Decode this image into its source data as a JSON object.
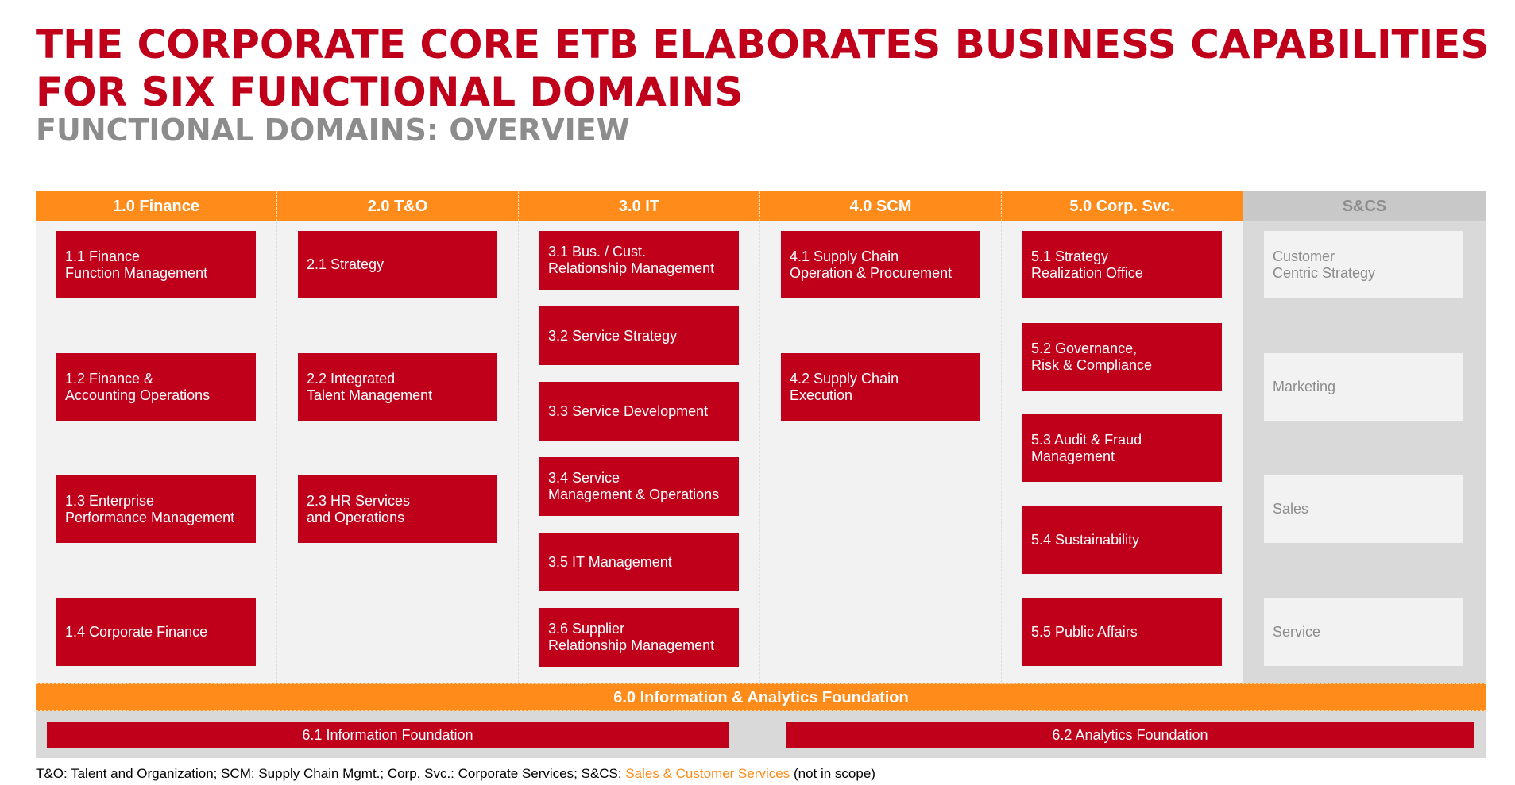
{
  "title": "THE CORPORATE CORE ETB ELABORATES BUSINESS CAPABILITIES FOR SIX FUNCTIONAL DOMAINS",
  "subtitle": "FUNCTIONAL DOMAINS: OVERVIEW",
  "columns": [
    {
      "header": "1.0 Finance",
      "boxes": [
        "1.1 Finance\nFunction Management",
        "1.2 Finance &\nAccounting Operations",
        "1.3 Enterprise\nPerformance Management",
        "1.4 Corporate Finance"
      ]
    },
    {
      "header": "2.0 T&O",
      "boxes": [
        "2.1 Strategy",
        "2.2 Integrated\nTalent Management",
        "2.3 HR Services\nand Operations"
      ]
    },
    {
      "header": "3.0 IT",
      "boxes": [
        "3.1 Bus. / Cust.\nRelationship Management",
        "3.2 Service Strategy",
        "3.3 Service Development",
        "3.4 Service\nManagement & Operations",
        "3.5 IT Management",
        "3.6 Supplier\nRelationship Management"
      ]
    },
    {
      "header": "4.0 SCM",
      "boxes": [
        "4.1 Supply Chain\nOperation & Procurement",
        "4.2 Supply Chain\nExecution"
      ]
    },
    {
      "header": "5.0 Corp. Svc.",
      "boxes": [
        "5.1 Strategy\nRealization Office",
        "5.2 Governance,\nRisk & Compliance",
        "5.3 Audit & Fraud\nManagement",
        "5.4 Sustainability",
        "5.5 Public Affairs"
      ]
    },
    {
      "header": "S&CS",
      "boxes": [
        "Customer\nCentric Strategy",
        "Marketing",
        "Sales",
        "Service"
      ]
    }
  ],
  "foundation": {
    "header": "6.0 Information & Analytics Foundation",
    "boxes": [
      "6.1 Information Foundation",
      "6.2 Analytics Foundation"
    ]
  },
  "footnote": {
    "prefix": "T&O: Talent and Organization; SCM: Supply Chain Mgmt.; Corp. Svc.: Corporate Services; S&CS: ",
    "link": "Sales & Customer Services",
    "suffix": " (not in scope)"
  },
  "colors": {
    "red": "#c0001b",
    "orange": "#ff8c1a",
    "grey_text": "#8c8c8c"
  }
}
